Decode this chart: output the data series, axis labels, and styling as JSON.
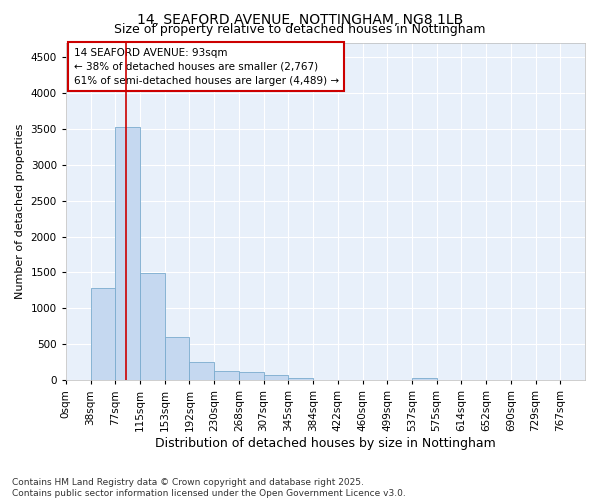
{
  "title_line1": "14, SEAFORD AVENUE, NOTTINGHAM, NG8 1LB",
  "title_line2": "Size of property relative to detached houses in Nottingham",
  "xlabel": "Distribution of detached houses by size in Nottingham",
  "ylabel": "Number of detached properties",
  "bar_values": [
    5,
    1280,
    3530,
    1490,
    600,
    255,
    130,
    115,
    70,
    35,
    5,
    0,
    0,
    0,
    35,
    0,
    0,
    0,
    0,
    0,
    0
  ],
  "bin_labels": [
    "0sqm",
    "38sqm",
    "77sqm",
    "115sqm",
    "153sqm",
    "192sqm",
    "230sqm",
    "268sqm",
    "307sqm",
    "345sqm",
    "384sqm",
    "422sqm",
    "460sqm",
    "499sqm",
    "537sqm",
    "575sqm",
    "614sqm",
    "652sqm",
    "690sqm",
    "729sqm",
    "767sqm"
  ],
  "bar_color": "#c5d8f0",
  "bar_edge_color": "#7aabce",
  "background_color": "#ffffff",
  "plot_bg_color": "#e8f0fa",
  "grid_color": "#ffffff",
  "annotation_text": "14 SEAFORD AVENUE: 93sqm\n← 38% of detached houses are smaller (2,767)\n61% of semi-detached houses are larger (4,489) →",
  "annotation_box_color": "#ffffff",
  "annotation_box_edge_color": "#cc0000",
  "vline_color": "#cc0000",
  "vline_x_data": 93,
  "ylim": [
    0,
    4700
  ],
  "yticks": [
    0,
    500,
    1000,
    1500,
    2000,
    2500,
    3000,
    3500,
    4000,
    4500
  ],
  "footnote": "Contains HM Land Registry data © Crown copyright and database right 2025.\nContains public sector information licensed under the Open Government Licence v3.0.",
  "title_fontsize": 10,
  "subtitle_fontsize": 9,
  "xlabel_fontsize": 9,
  "ylabel_fontsize": 8,
  "tick_fontsize": 7.5,
  "annotation_fontsize": 7.5,
  "footnote_fontsize": 6.5
}
